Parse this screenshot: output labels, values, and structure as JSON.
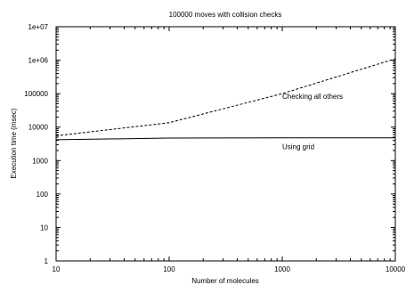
{
  "chart_data": {
    "type": "line",
    "title": "100000 moves with collision checks",
    "xlabel": "Number of molecules",
    "ylabel": "Execution time (msec)",
    "x_scale": "log",
    "y_scale": "log",
    "xlim": [
      10,
      10000
    ],
    "ylim": [
      1,
      10000000
    ],
    "x_ticks": [
      10,
      100,
      1000,
      10000
    ],
    "x_tick_labels": [
      "10",
      "100",
      "1000",
      "10000"
    ],
    "y_ticks": [
      1,
      10,
      100,
      1000,
      10000,
      100000,
      1000000,
      10000000
    ],
    "y_tick_labels": [
      "1",
      "10",
      "100",
      "1000",
      "10000",
      "100000",
      "1e+06",
      "1e+07"
    ],
    "grid": false,
    "series": [
      {
        "name": "Checking all others",
        "style": "dashed",
        "color": "#000000",
        "x": [
          10,
          100,
          1000,
          10000
        ],
        "y": [
          5500,
          13500,
          100000,
          1100000
        ]
      },
      {
        "name": "Using grid",
        "style": "solid",
        "color": "#000000",
        "x": [
          10,
          100,
          1000,
          10000
        ],
        "y": [
          4200,
          4700,
          4800,
          4800
        ]
      }
    ]
  }
}
